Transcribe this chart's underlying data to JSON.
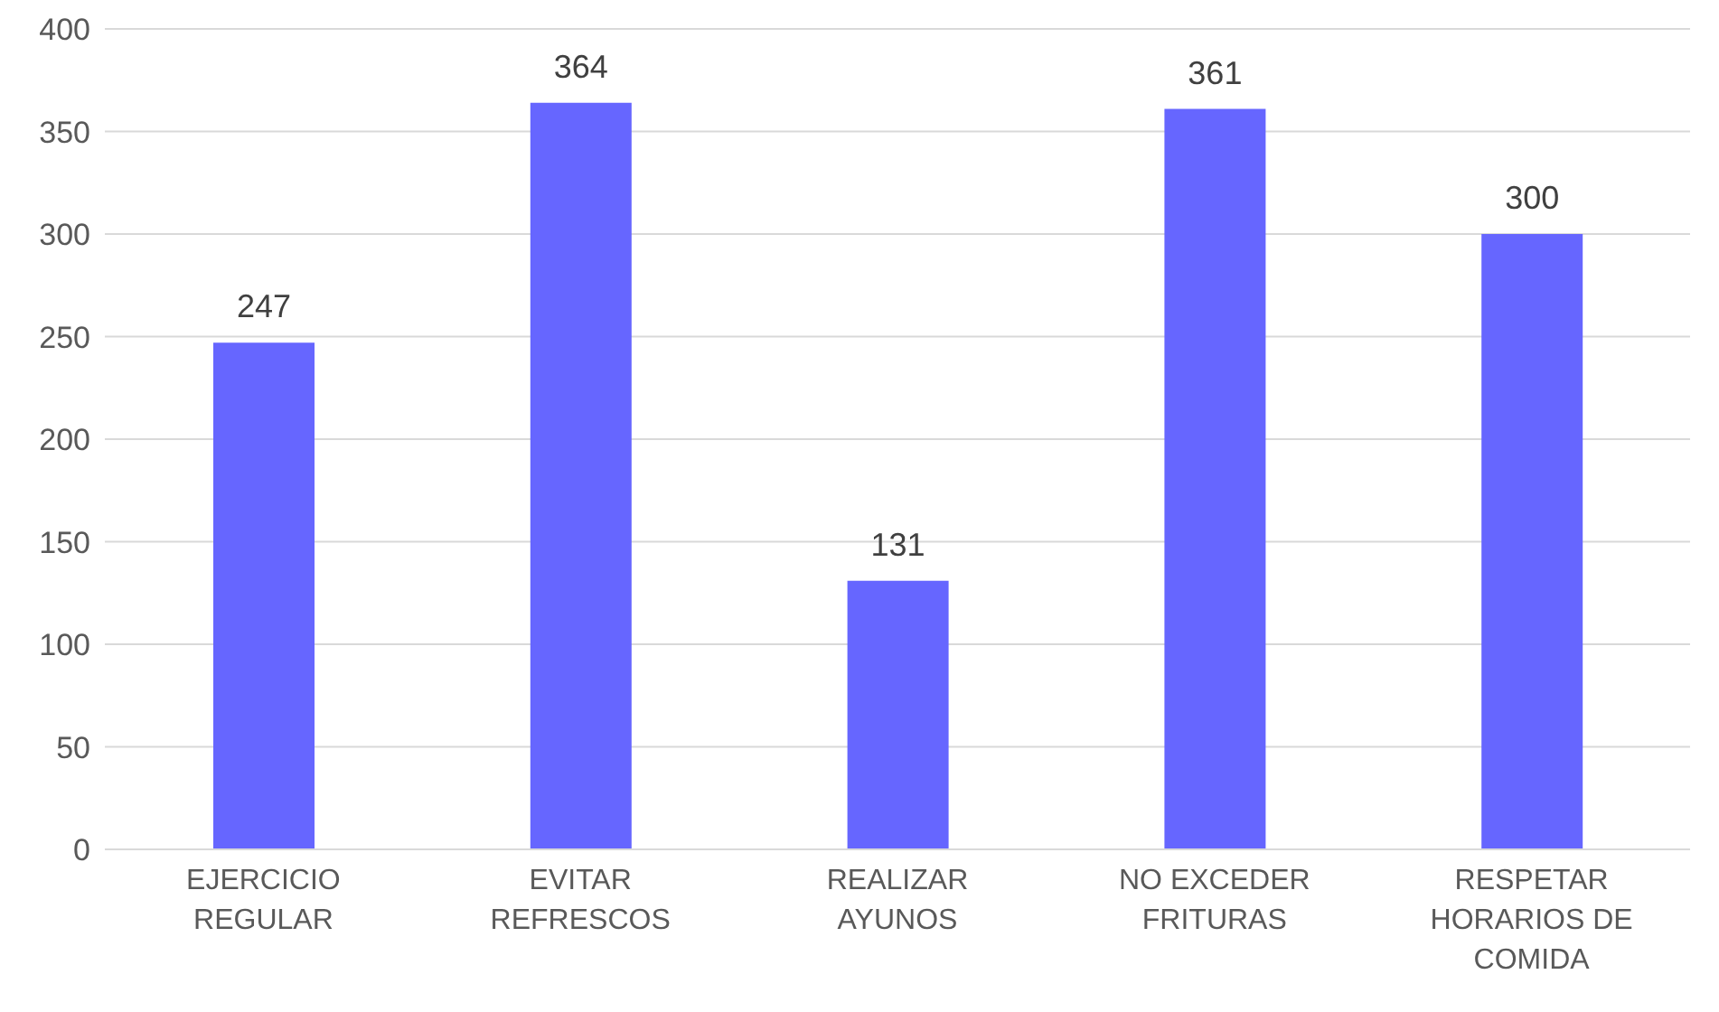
{
  "chart_data": {
    "type": "bar",
    "categories": [
      "EJERCICIO REGULAR",
      "EVITAR REFRESCOS",
      "REALIZAR AYUNOS",
      "NO EXCEDER FRITURAS",
      "RESPETAR HORARIOS DE COMIDA"
    ],
    "values": [
      247,
      364,
      131,
      361,
      300
    ],
    "color": "#6666ff",
    "ylim": [
      0,
      400
    ],
    "yticks": [
      0,
      50,
      100,
      150,
      200,
      250,
      300,
      350,
      400
    ],
    "grid": "y",
    "data_labels": true,
    "legend": false
  }
}
